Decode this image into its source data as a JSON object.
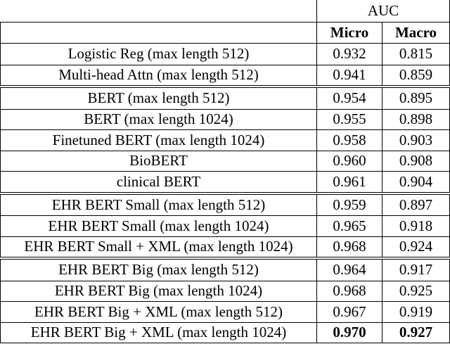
{
  "header": {
    "group": "AUC",
    "columns": [
      "Micro",
      "Macro"
    ]
  },
  "groups": [
    {
      "rows": [
        [
          "Logistic Reg (max length 512)",
          "0.932",
          "0.815"
        ],
        [
          "Multi-head Attn (max length 512)",
          "0.941",
          "0.859"
        ]
      ]
    },
    {
      "rows": [
        [
          "BERT (max length 512)",
          "0.954",
          "0.895"
        ],
        [
          "BERT (max length 1024)",
          "0.955",
          "0.898"
        ],
        [
          "Finetuned BERT (max length 1024)",
          "0.958",
          "0.903"
        ],
        [
          "BioBERT",
          "0.960",
          "0.908"
        ],
        [
          "clinical BERT",
          "0.961",
          "0.904"
        ]
      ]
    },
    {
      "rows": [
        [
          "EHR BERT Small (max length 512)",
          "0.959",
          "0.897"
        ],
        [
          "EHR BERT Small (max length 1024)",
          "0.965",
          "0.918"
        ],
        [
          "EHR BERT Small + XML (max length 1024)",
          "0.968",
          "0.924"
        ]
      ]
    },
    {
      "rows": [
        [
          "EHR BERT Big (max length 512)",
          "0.964",
          "0.917"
        ],
        [
          "EHR BERT Big (max length 1024)",
          "0.968",
          "0.925"
        ],
        [
          "EHR BERT Big + XML (max length 512)",
          "0.967",
          "0.919"
        ],
        [
          "EHR BERT Big + XML (max length 1024)",
          "0.970",
          "0.927"
        ]
      ]
    }
  ]
}
